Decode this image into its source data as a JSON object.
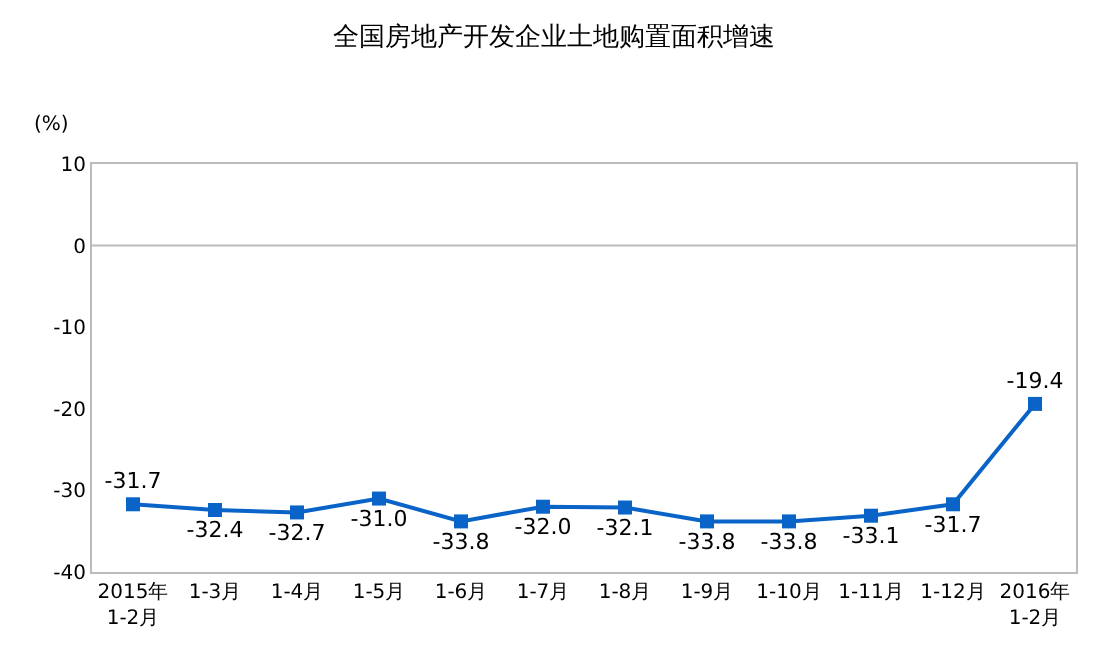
{
  "chart_data": {
    "type": "line",
    "title": "全国房地产开发企业土地购置面积增速",
    "ylabel": "(%)",
    "categories": [
      "2015年\n1-2月",
      "1-3月",
      "1-4月",
      "1-5月",
      "1-6月",
      "1-7月",
      "1-8月",
      "1-9月",
      "1-10月",
      "1-11月",
      "1-12月",
      "2016年\n1-2月"
    ],
    "series": [
      {
        "color": "#0a64c8",
        "values": [
          -31.7,
          -32.4,
          -32.7,
          -31.0,
          -33.8,
          -32.0,
          -32.1,
          -33.8,
          -33.8,
          -33.1,
          -31.7,
          -19.4
        ],
        "value_labels": [
          "-31.7",
          "-32.4",
          "-32.7",
          "-31.0",
          "-33.8",
          "-32.0",
          "-32.1",
          "-33.8",
          "-33.8",
          "-33.1",
          "-31.7",
          "-19.4"
        ]
      }
    ],
    "ylim": [
      -40,
      10
    ],
    "yticks": [
      -40,
      -30,
      -20,
      -10,
      0,
      10
    ],
    "marker": "square",
    "ref_lines": [
      {
        "axis": "y",
        "value": 0,
        "color": "#bbbbbb"
      }
    ]
  }
}
